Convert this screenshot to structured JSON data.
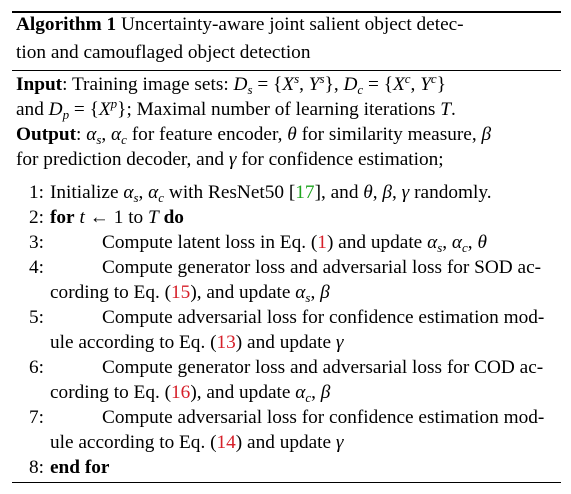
{
  "algorithm": {
    "label": "Algorithm 1",
    "title_line1": "Uncertainty-aware joint salient object detec-",
    "title_line2": "tion and camouflaged object detection"
  },
  "input": {
    "label": "Input",
    "line1_text": ": Training image sets: ",
    "line2_and": "and ",
    "line2_rest": "; Maximal number of learning iterations "
  },
  "output": {
    "label": "Output",
    "line1_rest": " for feature encoder, ",
    "line1_theta_text": " for similarity measure, ",
    "line2_a": "for prediction decoder, and ",
    "line2_b": " for confidence estimation;"
  },
  "steps": [
    {
      "num": "1:",
      "text_a": "Initialize ",
      "text_b": " with ResNet50 [",
      "ref": "17",
      "text_c": "], and ",
      "text_d": " randomly."
    },
    {
      "num": "2:",
      "kw_for": "for",
      "text_a": " 1 to ",
      "kw_do": "do"
    },
    {
      "num": "3:",
      "text_a": "Compute latent loss in Eq. (",
      "ref": "1",
      "text_b": ") and update "
    },
    {
      "num": "4:",
      "line1": "Compute generator loss and adversarial loss for SOD ac-",
      "line2_a": "cording to Eq. (",
      "ref": "15",
      "line2_b": "), and update "
    },
    {
      "num": "5:",
      "line1": "Compute adversarial loss for confidence estimation mod-",
      "line2_a": "ule according to Eq. (",
      "ref": "13",
      "line2_b": ") and update "
    },
    {
      "num": "6:",
      "line1": "Compute generator loss and adversarial loss for COD ac-",
      "line2_a": "cording to Eq. (",
      "ref": "16",
      "line2_b": "), and update "
    },
    {
      "num": "7:",
      "line1": "Compute adversarial loss for confidence estimation mod-",
      "line2_a": "ule according to Eq. (",
      "ref": "14",
      "line2_b": ") and update "
    },
    {
      "num": "8:",
      "kw_end": "end for"
    }
  ],
  "colors": {
    "citation": "#1fa51f",
    "equation_ref": "#d6202a",
    "rule": "#000000"
  }
}
